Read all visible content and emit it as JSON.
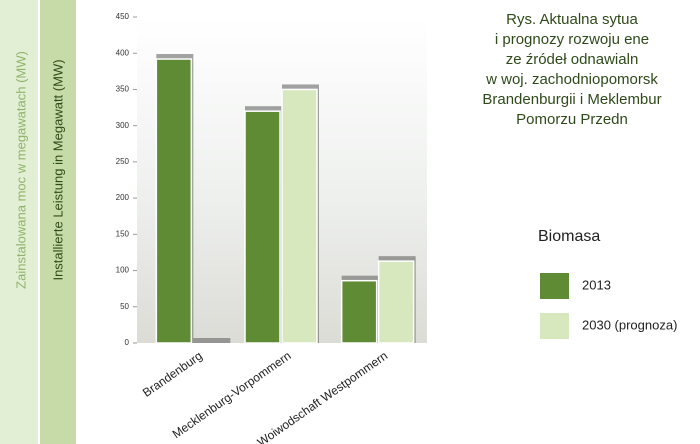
{
  "chart_data": {
    "type": "bar",
    "title": [
      "Rys. Aktualna sytua",
      "i prognozy rozwoju ene",
      "ze źródeł odnawialn",
      "w woj. zachodniopomorsk",
      "Brandenburgii i Meklembur",
      "Pomorzu Przedn"
    ],
    "y_labels": [
      "Zainstalowana moc w megawatach (MW)",
      "Installierte Leistung in Megawatt (MW)"
    ],
    "legend_title": "Biomasa",
    "categories": [
      "Brandenburg",
      "Mecklenburg-Vorpommern",
      "Woiwodschaft Westpommern"
    ],
    "series": [
      {
        "name": "2013",
        "color": "#5e8b34",
        "values": [
          392,
          320,
          86
        ]
      },
      {
        "name": "2030 (prognoza)",
        "color": "#d7e7be",
        "values": [
          null,
          350,
          113
        ]
      }
    ],
    "ylim": [
      0,
      450
    ],
    "yticks": [
      0,
      50,
      100,
      150,
      200,
      250,
      300,
      350,
      400,
      450
    ]
  }
}
